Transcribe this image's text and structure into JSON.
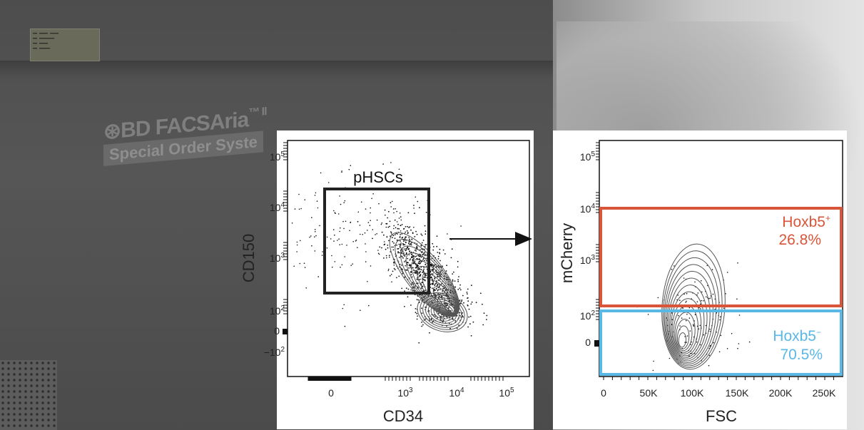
{
  "background": {
    "instrument_brand": "BD FACSAria",
    "instrument_suffix": "™ II",
    "instrument_line2": "Special Order Syste"
  },
  "colors": {
    "hoxb5_positive": "#d9553a",
    "hoxb5_negative": "#5ab8e6",
    "gate_box": "#222222",
    "contour": "#555555"
  },
  "chart_data": [
    {
      "type": "scatter",
      "xlabel": "CD34",
      "ylabel": "CD150",
      "x_scale": "biexponential",
      "y_scale": "biexponential",
      "x_ticks": [
        "0",
        "10^3",
        "10^4",
        "10^5"
      ],
      "y_ticks": [
        "10^5",
        "10^4",
        "10^3",
        "10^2",
        "0",
        "-10^2"
      ],
      "gates": [
        {
          "name": "pHSCs",
          "x_range": [
            "~10^1",
            "~3×10^3"
          ],
          "y_range": [
            "~2×10^2",
            "~2×10^4"
          ]
        }
      ],
      "population_center": {
        "x": 5000,
        "y": 100
      }
    },
    {
      "type": "scatter",
      "xlabel": "FSC",
      "ylabel": "mCherry",
      "x_scale": "linear",
      "y_scale": "biexponential",
      "x_ticks": [
        "0",
        "50K",
        "100K",
        "150K",
        "200K",
        "250K"
      ],
      "y_ticks": [
        "10^5",
        "10^4",
        "10^3",
        "10^2",
        "0"
      ],
      "gates": [
        {
          "name": "Hoxb5",
          "sign": "+",
          "percent_label": "26.8%",
          "percent": 26.8,
          "y_range": [
            "~1.5×10^2",
            "~10^4"
          ]
        },
        {
          "name": "Hoxb5",
          "sign": "−",
          "percent_label": "70.5%",
          "percent": 70.5,
          "y_range": [
            "< 0",
            "~1.5×10^2"
          ]
        }
      ],
      "population_center": {
        "x": 110000,
        "y": 0
      }
    }
  ],
  "plot1": {
    "xlabel": "CD34",
    "ylabel": "CD150",
    "gate_label": "pHSCs",
    "xticks": [
      {
        "base": "0",
        "exp": ""
      },
      {
        "base": "10",
        "exp": "3"
      },
      {
        "base": "10",
        "exp": "4"
      },
      {
        "base": "10",
        "exp": "5"
      }
    ],
    "yticks": [
      {
        "base": "10",
        "exp": "5"
      },
      {
        "base": "10",
        "exp": "4"
      },
      {
        "base": "10",
        "exp": "3"
      },
      {
        "base": "10",
        "exp": "2"
      },
      {
        "base": "0",
        "exp": ""
      },
      {
        "base": "−10",
        "exp": "2"
      }
    ]
  },
  "plot2": {
    "xlabel": "FSC",
    "ylabel": "mCherry",
    "xticks": [
      "0",
      "50K",
      "100K",
      "150K",
      "200K",
      "250K"
    ],
    "yticks": [
      {
        "base": "10",
        "exp": "5"
      },
      {
        "base": "10",
        "exp": "4"
      },
      {
        "base": "10",
        "exp": "3"
      },
      {
        "base": "10",
        "exp": "2"
      },
      {
        "base": "0",
        "exp": ""
      }
    ],
    "pos_gate": {
      "name": "Hoxb5",
      "sign": "+",
      "percent": "26.8%"
    },
    "neg_gate": {
      "name": "Hoxb5",
      "sign": "−",
      "percent": "70.5%"
    }
  }
}
